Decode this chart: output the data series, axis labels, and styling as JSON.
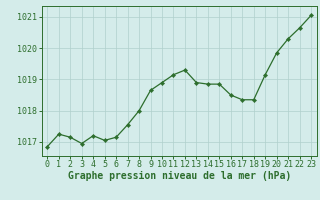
{
  "x": [
    0,
    1,
    2,
    3,
    4,
    5,
    6,
    7,
    8,
    9,
    10,
    11,
    12,
    13,
    14,
    15,
    16,
    17,
    18,
    19,
    20,
    21,
    22,
    23
  ],
  "y": [
    1016.85,
    1017.25,
    1017.15,
    1016.95,
    1017.2,
    1017.05,
    1017.15,
    1017.55,
    1018.0,
    1018.65,
    1018.9,
    1019.15,
    1019.3,
    1018.9,
    1018.85,
    1018.85,
    1018.5,
    1018.35,
    1018.35,
    1019.15,
    1019.85,
    1020.3,
    1020.65,
    1021.05
  ],
  "line_color": "#2d6e2d",
  "marker": "D",
  "marker_size": 2.2,
  "bg_color": "#d4ecea",
  "grid_color": "#b0d0cc",
  "ylabel_ticks": [
    1017,
    1018,
    1019,
    1020,
    1021
  ],
  "xlabel": "Graphe pression niveau de la mer (hPa)",
  "ylim": [
    1016.55,
    1021.35
  ],
  "xlim": [
    -0.5,
    23.5
  ],
  "xlabel_fontsize": 7.0,
  "tick_fontsize": 6.0,
  "xlabel_color": "#2d6e2d",
  "tick_color": "#2d6e2d",
  "spine_color": "#2d6e2d",
  "linewidth": 0.9
}
